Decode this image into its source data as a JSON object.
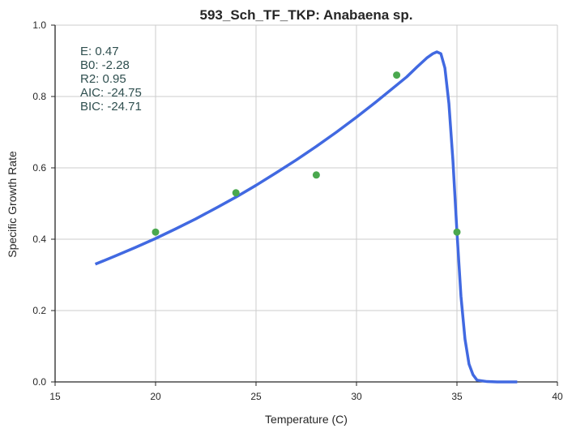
{
  "chart_data": {
    "type": "scatter",
    "title": "593_Sch_TF_TKP: Anabaena sp.",
    "xlabel": "Temperature (C)",
    "ylabel": "Specific Growth Rate",
    "xlim": [
      15,
      40
    ],
    "ylim": [
      0,
      1
    ],
    "xticks": [
      "15",
      "20",
      "25",
      "30",
      "35",
      "40"
    ],
    "yticks": [
      "0.0",
      "0.2",
      "0.4",
      "0.6",
      "0.8",
      "1.0"
    ],
    "grid": true,
    "annotations": [
      "E:  0.47",
      "B0:  -2.28",
      "R2:  0.95",
      "AIC: -24.75",
      "BIC: -24.71"
    ],
    "colors": {
      "fit": "#4169e1",
      "points": "#4aa84e",
      "grid": "#cccccc",
      "annotation": "#2f4f4f"
    },
    "points": {
      "x": [
        20,
        24,
        28,
        32,
        35
      ],
      "y": [
        0.42,
        0.53,
        0.58,
        0.86,
        0.42
      ]
    },
    "fit": {
      "x": [
        17,
        18,
        19,
        20,
        21,
        22,
        23,
        24,
        25,
        26,
        27,
        28,
        29,
        30,
        31,
        32,
        32.5,
        33,
        33.5,
        33.8,
        34,
        34.2,
        34.4,
        34.6,
        34.8,
        35,
        35.2,
        35.4,
        35.6,
        35.8,
        36,
        36.5,
        37,
        38
      ],
      "y": [
        0.33,
        0.353,
        0.377,
        0.402,
        0.429,
        0.457,
        0.487,
        0.518,
        0.551,
        0.586,
        0.622,
        0.66,
        0.7,
        0.742,
        0.786,
        0.832,
        0.855,
        0.882,
        0.908,
        0.92,
        0.925,
        0.92,
        0.88,
        0.78,
        0.62,
        0.42,
        0.24,
        0.12,
        0.05,
        0.02,
        0.005,
        0.001,
        0,
        0
      ]
    }
  }
}
